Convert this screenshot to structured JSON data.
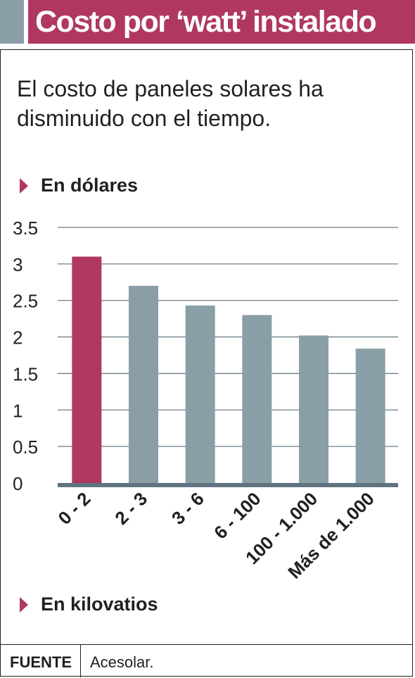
{
  "header": {
    "title": "Costo por ‘watt’ instalado"
  },
  "subtitle": "El costo de paneles solares ha disminuido con el tiempo.",
  "chart_data": {
    "type": "bar",
    "title": "Costo por ‘watt’ instalado",
    "ylabel": "En dólares",
    "xlabel": "En kilovatios",
    "categories": [
      "0 - 2",
      "2 - 3",
      "3 - 6",
      "6 - 100",
      "100 - 1.000",
      "Más de 1.000"
    ],
    "values": [
      3.1,
      2.7,
      2.43,
      2.3,
      2.02,
      1.84
    ],
    "yticks": [
      "0",
      "0.5",
      "1",
      "1.5",
      "2",
      "2.5",
      "3",
      "3.5"
    ],
    "ylim": [
      0,
      3.5
    ],
    "grid": true,
    "colors": {
      "highlight": "#b03860",
      "bar": "#8a9ea8",
      "axis": "#5f7480",
      "grid": "#6d7f89"
    },
    "highlight_index": 0
  },
  "footer": {
    "source_label": "FUENTE",
    "source": "Acesolar."
  }
}
